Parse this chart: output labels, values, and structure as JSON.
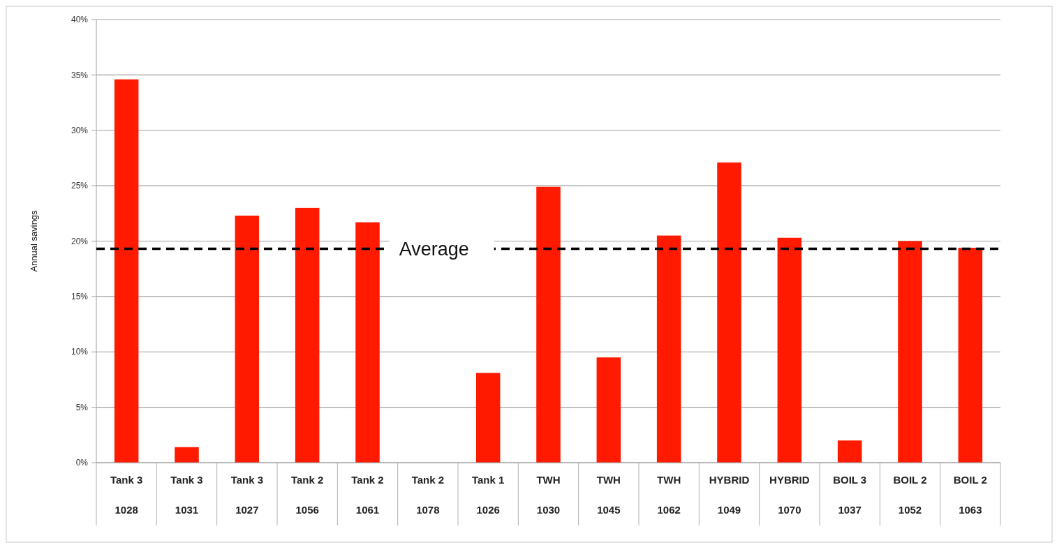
{
  "chart_data": {
    "type": "bar",
    "ylabel": "Annual savings",
    "categories": [
      "Tank 3\n1028",
      "Tank 3\n1031",
      "Tank 3\n1027",
      "Tank 2\n1056",
      "Tank 2\n1061",
      "Tank 2\n1078",
      "Tank 1\n1026",
      "TWH\n1030",
      "TWH\n1045",
      "TWH\n1062",
      "HYBRID\n1049",
      "HYBRID\n1070",
      "BOIL 3\n1037",
      "BOIL 2\n1052",
      "BOIL 2\n1063"
    ],
    "values": [
      34.6,
      1.4,
      22.3,
      23.0,
      21.7,
      0,
      8.1,
      24.9,
      9.5,
      20.5,
      27.1,
      20.3,
      2.0,
      20.0,
      19.4
    ],
    "color": "#ff1a00",
    "ylim": [
      0,
      40
    ],
    "yticks": [
      {
        "value": 0,
        "label": "0%"
      },
      {
        "value": 5,
        "label": "5%"
      },
      {
        "value": 10,
        "label": "10%"
      },
      {
        "value": 15,
        "label": "15%"
      },
      {
        "value": 20,
        "label": "20%"
      },
      {
        "value": 25,
        "label": "25%"
      },
      {
        "value": 30,
        "label": "30%"
      },
      {
        "value": 35,
        "label": "35%"
      },
      {
        "value": 40,
        "label": "40%"
      }
    ],
    "grid": "y",
    "ref_lines": [
      {
        "axis": "y",
        "value": 19.3,
        "label": "Average",
        "color": "#000000",
        "line_style": "dashed"
      }
    ]
  }
}
